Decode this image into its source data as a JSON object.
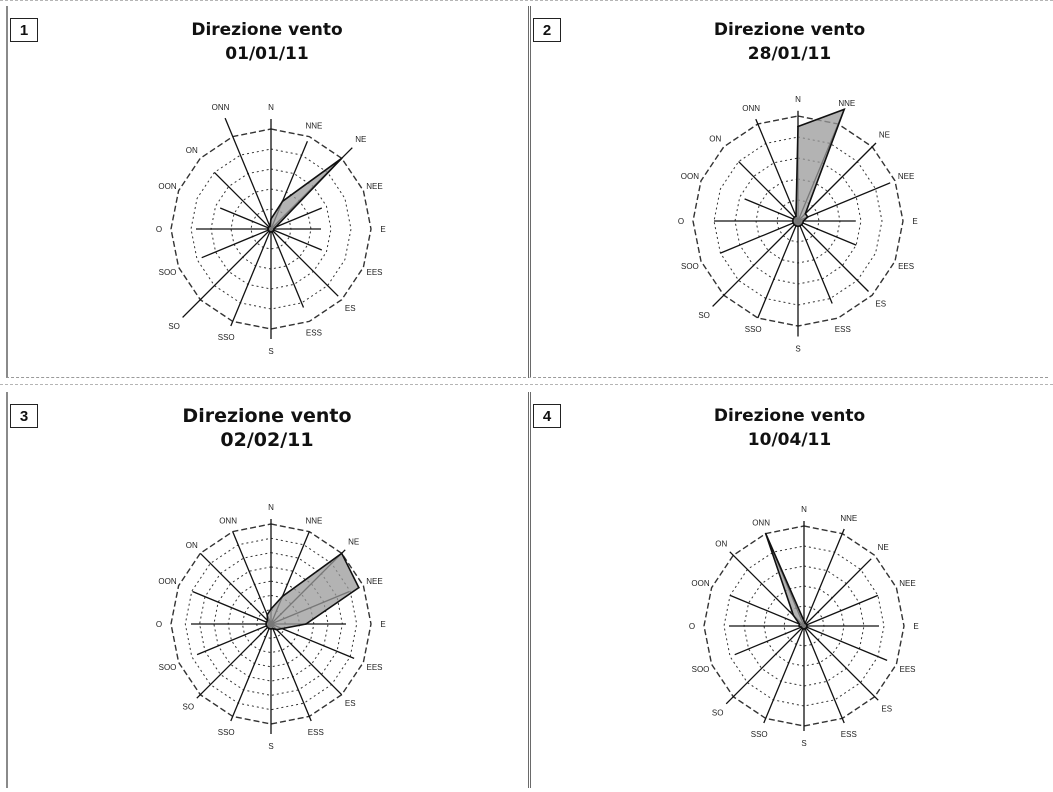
{
  "colors": {
    "axis": "#111111",
    "ring": "#333333",
    "fill": "#9a9a9a",
    "outline": "#111111"
  },
  "chart_data": [
    {
      "type": "radar",
      "panel_number": "1",
      "title": "Direzione vento",
      "subtitle": "01/01/11",
      "directions": [
        "N",
        "NNE",
        "NE",
        "NEE",
        "E",
        "EES",
        "ES",
        "ESS",
        "S",
        "SSO",
        "SO",
        "SOO",
        "O",
        "OON",
        "ON",
        "ONN"
      ],
      "rings": 5,
      "values": [
        0.1,
        0.3,
        1.0,
        0.05,
        0.03,
        0.03,
        0.03,
        0.03,
        0.03,
        0.03,
        0.03,
        0.03,
        0.03,
        0.03,
        0.03,
        0.03
      ],
      "ray_lengths": [
        1.1,
        0.95,
        1.15,
        0.55,
        0.5,
        0.55,
        0.95,
        0.85,
        1.1,
        1.05,
        1.25,
        0.75,
        0.75,
        0.55,
        0.8,
        1.2
      ]
    },
    {
      "type": "radar",
      "panel_number": "2",
      "title": "Direzione vento",
      "subtitle": "28/01/11",
      "directions": [
        "N",
        "NNE",
        "NE",
        "NEE",
        "E",
        "EES",
        "ES",
        "ESS",
        "S",
        "SSO",
        "SO",
        "SOO",
        "O",
        "OON",
        "ON",
        "ONN"
      ],
      "rings": 5,
      "values": [
        0.9,
        1.15,
        0.1,
        0.1,
        0.05,
        0.05,
        0.05,
        0.05,
        0.05,
        0.05,
        0.05,
        0.05,
        0.05,
        0.05,
        0.05,
        0.05
      ],
      "ray_lengths": [
        1.05,
        1.1,
        1.05,
        0.95,
        0.55,
        0.6,
        0.95,
        0.85,
        1.1,
        1.0,
        1.15,
        0.8,
        0.8,
        0.55,
        0.8,
        1.05
      ]
    },
    {
      "type": "radar",
      "panel_number": "3",
      "title": "Direzione vento",
      "subtitle": "02/02/11",
      "directions": [
        "N",
        "NNE",
        "NE",
        "NEE",
        "E",
        "EES",
        "ES",
        "ESS",
        "S",
        "SSO",
        "SO",
        "SOO",
        "O",
        "OON",
        "ON",
        "ONN"
      ],
      "rings": 7,
      "values": [
        0.15,
        0.3,
        1.0,
        0.95,
        0.35,
        0.12,
        0.08,
        0.05,
        0.05,
        0.05,
        0.05,
        0.05,
        0.05,
        0.05,
        0.05,
        0.1
      ],
      "ray_lengths": [
        1.05,
        1.0,
        1.05,
        0.85,
        0.75,
        0.9,
        1.0,
        1.05,
        1.1,
        1.05,
        1.05,
        0.8,
        0.8,
        0.85,
        1.0,
        1.0
      ]
    },
    {
      "type": "radar",
      "panel_number": "4",
      "title": "Direzione vento",
      "subtitle": "10/04/11",
      "directions": [
        "N",
        "NNE",
        "NE",
        "NEE",
        "E",
        "EES",
        "ES",
        "ESS",
        "S",
        "SSO",
        "SO",
        "SOO",
        "O",
        "OON",
        "ON",
        "ONN"
      ],
      "rings": 5,
      "values": [
        0.05,
        0.03,
        0.03,
        0.03,
        0.03,
        0.03,
        0.03,
        0.03,
        0.03,
        0.03,
        0.03,
        0.03,
        0.05,
        0.05,
        0.15,
        1.0
      ],
      "ray_lengths": [
        1.05,
        1.05,
        0.95,
        0.8,
        0.75,
        0.9,
        1.05,
        1.05,
        1.05,
        1.05,
        1.1,
        0.75,
        0.75,
        0.8,
        1.05,
        1.0
      ]
    }
  ]
}
